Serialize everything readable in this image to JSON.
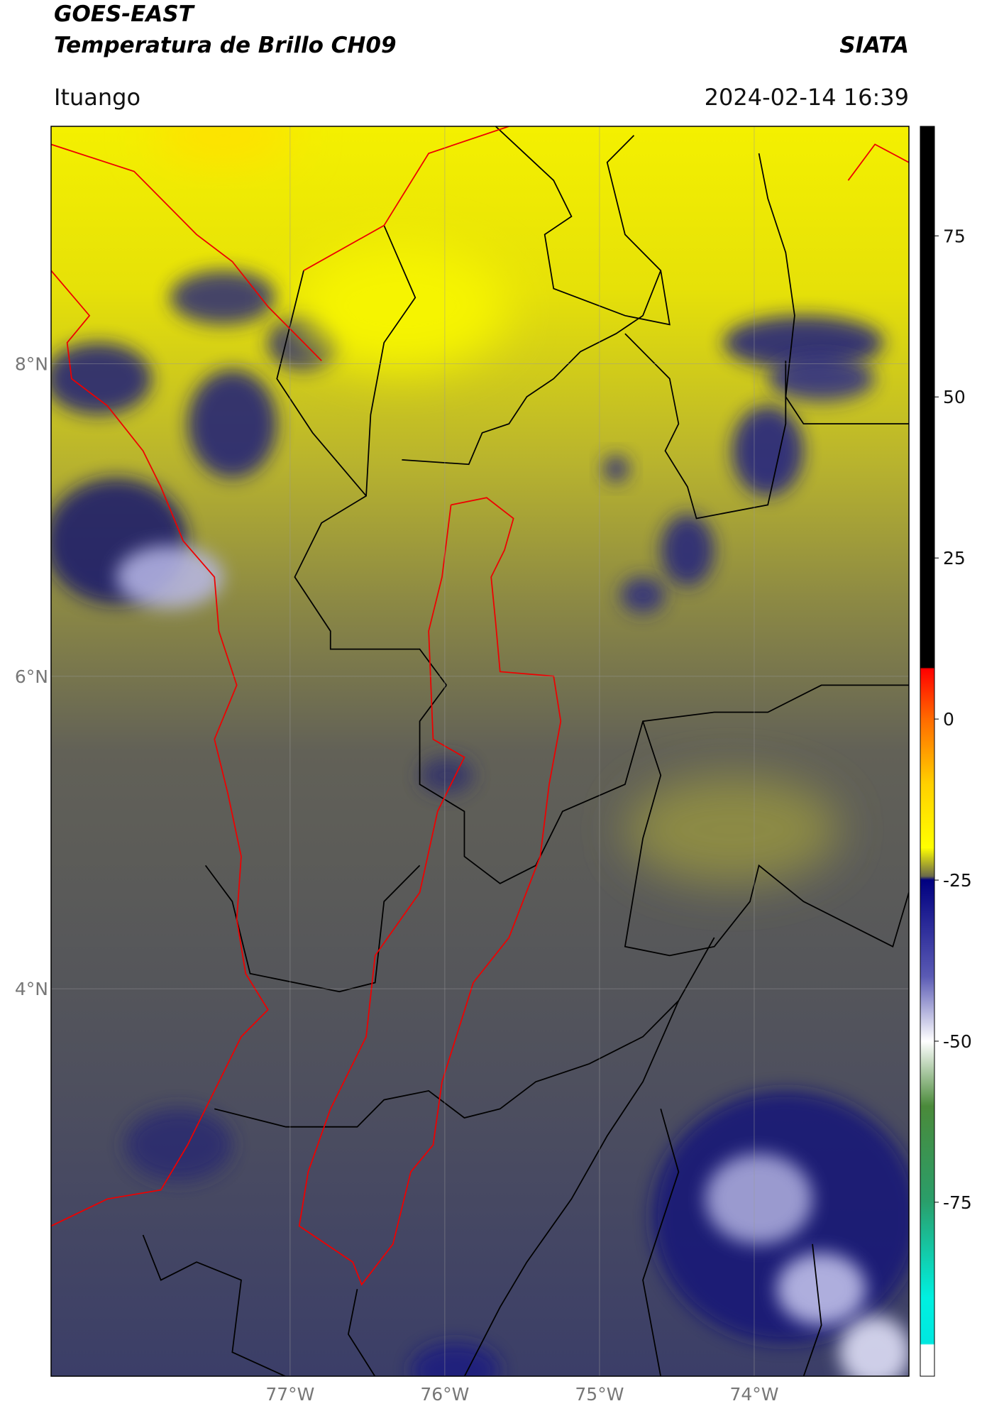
{
  "header": {
    "title_line1": "GOES-EAST",
    "title_line2": "Temperatura de Brillo CH09",
    "source": "SIATA",
    "region": "Ituango",
    "timestamp": "2024-02-14 16:39"
  },
  "map": {
    "lonlim": [
      -78.545,
      -73.0
    ],
    "latlim": [
      1.52,
      9.52
    ],
    "lonticks": [
      {
        "value": -77,
        "label": "77°W"
      },
      {
        "value": -76,
        "label": "76°W"
      },
      {
        "value": -75,
        "label": "75°W"
      },
      {
        "value": -74,
        "label": "74°W"
      }
    ],
    "latticks": [
      {
        "value": 8,
        "label": "8°N"
      },
      {
        "value": 6,
        "label": "6°N"
      },
      {
        "value": 4,
        "label": "4°N"
      }
    ],
    "grid": true
  },
  "colorbar": {
    "lim": [
      -102,
      92
    ],
    "ticks": [
      75,
      50,
      25,
      0,
      -25,
      -50,
      -75
    ]
  }
}
